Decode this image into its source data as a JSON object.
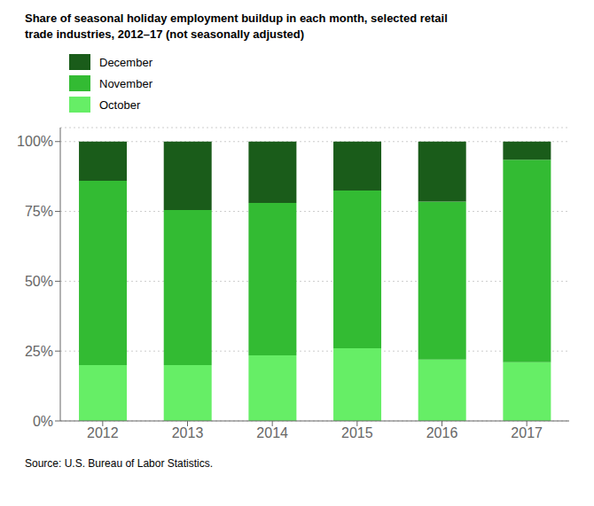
{
  "chart_data": {
    "type": "bar",
    "stacked": true,
    "title": "Share of seasonal holiday employment buildup in each month, selected retail\ntrade industries, 2012–17 (not seasonally adjusted)",
    "annotations": [
      "Source: U.S. Bureau of Labor Statistics."
    ],
    "categories": [
      "2012",
      "2013",
      "2014",
      "2015",
      "2016",
      "2017"
    ],
    "series": [
      {
        "name": "October",
        "color": "#66ee66",
        "values": [
          0.2,
          0.2,
          0.235,
          0.26,
          0.22,
          0.21
        ]
      },
      {
        "name": "November",
        "color": "#33bb33",
        "values": [
          0.66,
          0.555,
          0.545,
          0.565,
          0.565,
          0.725
        ]
      },
      {
        "name": "December",
        "color": "#1a5c1a",
        "values": [
          0.14,
          0.245,
          0.22,
          0.175,
          0.215,
          0.065
        ]
      }
    ],
    "ylim": [
      0,
      1.05
    ],
    "yticks": [
      {
        "value": 0,
        "label": "0%"
      },
      {
        "value": 0.25,
        "label": "25%"
      },
      {
        "value": 0.5,
        "label": "50%"
      },
      {
        "value": 0.75,
        "label": "75%"
      },
      {
        "value": 1.0,
        "label": "100%"
      }
    ],
    "grid": true,
    "legend": "upper left"
  }
}
